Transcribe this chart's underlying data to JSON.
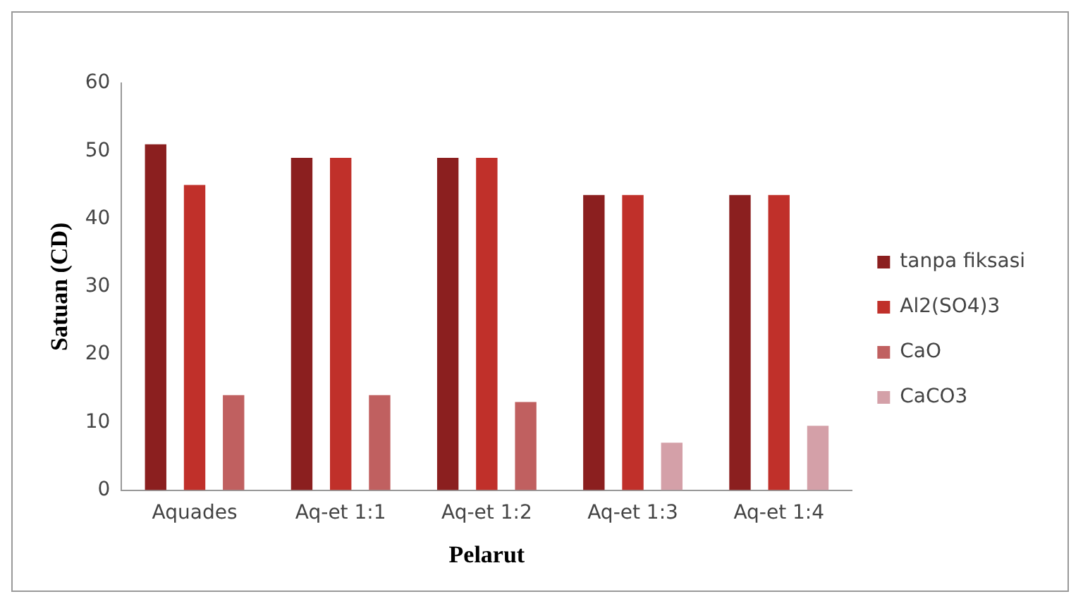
{
  "chart_data": {
    "type": "bar",
    "xlabel": "Pelarut",
    "ylabel": "Satuan (CD)",
    "categories": [
      "Aquades",
      "Aq-et 1:1",
      "Aq-et 1:2",
      "Aq-et 1:3",
      "Aq-et 1:4"
    ],
    "series": [
      {
        "name": "tanpa fiksasi",
        "color": "#8b1f1f",
        "values": [
          51,
          49,
          49,
          43.5,
          43.5
        ]
      },
      {
        "name": "Al2(SO4)3",
        "color": "#c0302a",
        "values": [
          45,
          49,
          49,
          43.5,
          43.5
        ]
      },
      {
        "name": "CaO",
        "color": "#c06060",
        "values": [
          14,
          14,
          13,
          null,
          null
        ]
      },
      {
        "name": "CaCO3",
        "color": "#d4a0a8",
        "values": [
          null,
          null,
          null,
          7,
          9.5
        ]
      }
    ],
    "ylim": [
      0,
      60
    ],
    "yticks": [
      0,
      10,
      20,
      30,
      40,
      50,
      60
    ],
    "grid": false,
    "legend": "right"
  }
}
